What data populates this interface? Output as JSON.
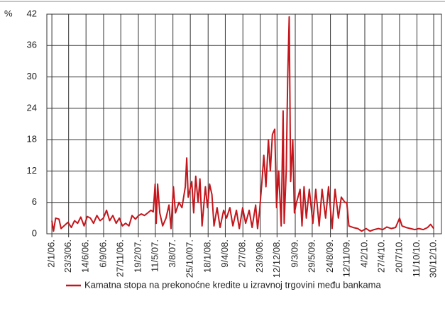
{
  "chart_data": {
    "type": "line",
    "y_label": "%",
    "xlim": [
      "9/12/05.",
      "5/2/11."
    ],
    "xticks": [
      "2/1/06.",
      "23/3/06.",
      "14/6/06.",
      "6/9/06.",
      "27/11/06.",
      "19/2/07.",
      "11/5/07.",
      "3/8/07.",
      "25/10/07.",
      "18/1/08.",
      "9/4/08.",
      "2/7/08.",
      "23/9/08.",
      "12/12/08.",
      "9/3/09.",
      "29/5/09.",
      "24/8/09.",
      "12/11/09.",
      "4/2/10.",
      "27/4/10.",
      "20/7/10.",
      "11/10/10.",
      "30/12/10."
    ],
    "ylim": [
      0,
      42
    ],
    "yticks": [
      0,
      6,
      12,
      18,
      24,
      30,
      36,
      42
    ],
    "grid": true,
    "x": [
      "2/1/06.",
      "10/1/06.",
      "20/1/06.",
      "5/2/06.",
      "15/2/06.",
      "1/3/06.",
      "20/3/06.",
      "5/4/06.",
      "20/4/06.",
      "5/5/06.",
      "20/5/06.",
      "5/6/06.",
      "20/6/06.",
      "5/7/06.",
      "20/7/06.",
      "5/8/06.",
      "20/8/06.",
      "5/9/06.",
      "20/9/06.",
      "5/10/06.",
      "20/10/06.",
      "5/11/06.",
      "20/11/06.",
      "5/12/06.",
      "20/12/06.",
      "5/1/07.",
      "20/1/07.",
      "5/2/07.",
      "20/2/07.",
      "5/3/07.",
      "20/3/07.",
      "5/4/07.",
      "20/4/07.",
      "1/5/07.",
      "10/5/07.",
      "15/5/07.",
      "22/5/07.",
      "1/6/07.",
      "15/6/07.",
      "1/7/07.",
      "15/7/07.",
      "25/7/07.",
      "5/8/07.",
      "15/8/07.",
      "1/9/07.",
      "15/9/07.",
      "1/10/07.",
      "8/10/07.",
      "15/10/07.",
      "1/11/07.",
      "10/11/07.",
      "20/11/07.",
      "1/12/07.",
      "10/12/07.",
      "20/12/07.",
      "5/1/08.",
      "15/1/08.",
      "25/1/08.",
      "5/2/08.",
      "15/2/08.",
      "1/3/08.",
      "15/3/08.",
      "1/4/08.",
      "15/4/08.",
      "1/5/08.",
      "15/5/08.",
      "1/6/08.",
      "15/6/08.",
      "1/7/08.",
      "15/7/08.",
      "1/8/08.",
      "15/8/08.",
      "1/9/08.",
      "10/9/08.",
      "20/9/08.",
      "1/10/08.",
      "10/10/08.",
      "20/10/08.",
      "1/11/08.",
      "10/11/08.",
      "20/11/08.",
      "1/12/08.",
      "10/12/08.",
      "20/12/08.",
      "1/1/09.",
      "10/1/09.",
      "15/1/09.",
      "25/1/09.",
      "1/2/09.",
      "8/2/09.",
      "15/2/09.",
      "25/2/09.",
      "5/3/09.",
      "15/3/09.",
      "1/4/09.",
      "10/4/09.",
      "20/4/09.",
      "1/5/09.",
      "15/5/09.",
      "1/6/09.",
      "15/6/09.",
      "1/7/09.",
      "15/7/09.",
      "1/8/09.",
      "15/8/09.",
      "1/9/09.",
      "15/9/09.",
      "1/10/09.",
      "15/10/09.",
      "1/11/09.",
      "10/11/09.",
      "20/11/09.",
      "10/12/09.",
      "1/1/10.",
      "20/1/10.",
      "10/2/10.",
      "1/3/10.",
      "20/3/10.",
      "10/4/10.",
      "1/5/10.",
      "20/5/10.",
      "10/6/10.",
      "1/7/10.",
      "20/7/10.",
      "1/8/10.",
      "20/8/10.",
      "10/9/10.",
      "1/10/10.",
      "20/10/10.",
      "10/11/10.",
      "1/12/10.",
      "15/12/10.",
      "30/12/10."
    ],
    "series": [
      {
        "name": "Kamatna stopa na prekonoćne kredite u izravnoj trgovini među bankama",
        "color": "#c4161c",
        "values": [
          2.5,
          0.5,
          3,
          2.8,
          1,
          1.5,
          2.2,
          1.2,
          2.5,
          2,
          3.2,
          1.5,
          3.3,
          3,
          2,
          3.5,
          2.5,
          3,
          4.5,
          2.5,
          3.5,
          2,
          3,
          1.5,
          2,
          1.5,
          3.5,
          2.8,
          3.5,
          3.8,
          3.5,
          4,
          4.5,
          4.2,
          9.5,
          2,
          9.5,
          4,
          1.5,
          3,
          5.5,
          1,
          9,
          4,
          6,
          5,
          9,
          14.5,
          7,
          10,
          4,
          11,
          6,
          10.5,
          1.5,
          9,
          5,
          9.5,
          7.5,
          1.5,
          5,
          1.2,
          4.5,
          3,
          5,
          1.5,
          4.5,
          1,
          5,
          2,
          4.5,
          1.2,
          5.5,
          1,
          4.5,
          10,
          15,
          9,
          18,
          12,
          19,
          20,
          5,
          12,
          1.5,
          23.5,
          2,
          12,
          30,
          41.5,
          10,
          18,
          4,
          6,
          8.5,
          1.5,
          9,
          3,
          8.5,
          2,
          8.5,
          1.5,
          8.5,
          3,
          9,
          1,
          8.5,
          3,
          7,
          6,
          6,
          1.5,
          1.2,
          1,
          0.5,
          1,
          0.5,
          0.8,
          1,
          0.8,
          1.3,
          1,
          1.2,
          3,
          1.5,
          1.2,
          1,
          0.8,
          1,
          0.8,
          1.2,
          1.8,
          1
        ]
      }
    ]
  }
}
